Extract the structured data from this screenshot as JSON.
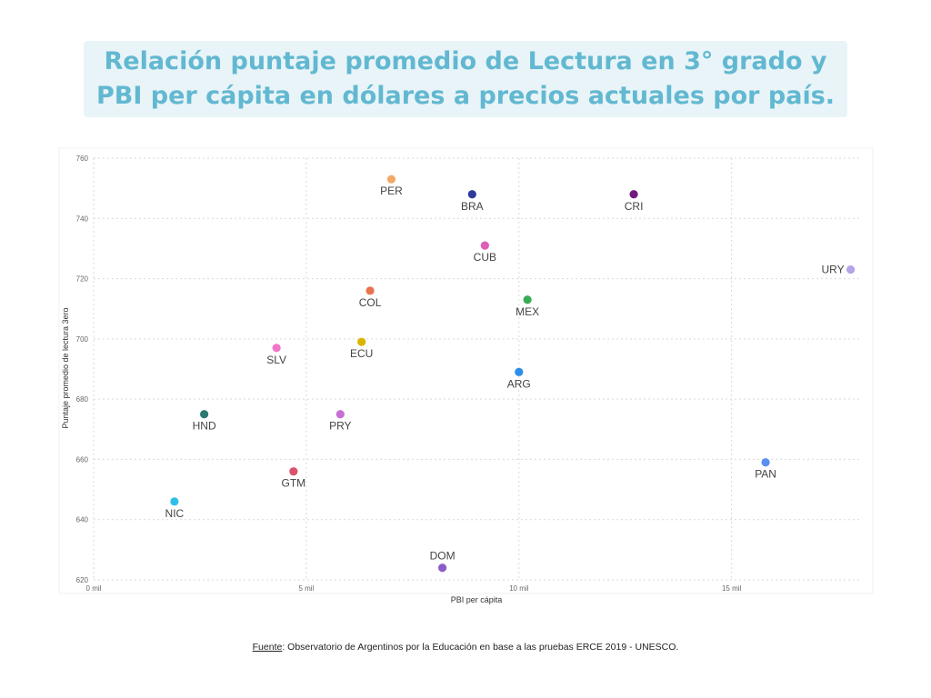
{
  "title": {
    "line1": "Relación puntaje promedio de Lectura en 3° grado y",
    "line2": "PBI per cápita en dólares a precios actuales por país."
  },
  "colors": {
    "title_text": "#62b8d1",
    "title_bg": "#e8f4f8",
    "grid": "#d9d9d9",
    "axis_text": "#666666",
    "point_label": "#444444"
  },
  "chart_data": {
    "type": "scatter",
    "xlabel": "PBI per cápita",
    "ylabel": "Puntaje promedio de lectura 3ero",
    "xlim": [
      0,
      18000
    ],
    "ylim": [
      620,
      760
    ],
    "x_ticks": [
      {
        "value": 0,
        "label": "0 mil"
      },
      {
        "value": 5000,
        "label": "5 mil"
      },
      {
        "value": 10000,
        "label": "10 mil"
      },
      {
        "value": 15000,
        "label": "15 mil"
      }
    ],
    "y_ticks": [
      {
        "value": 620,
        "label": "620"
      },
      {
        "value": 640,
        "label": "640"
      },
      {
        "value": 660,
        "label": "660"
      },
      {
        "value": 680,
        "label": "680"
      },
      {
        "value": 700,
        "label": "700"
      },
      {
        "value": 720,
        "label": "720"
      },
      {
        "value": 740,
        "label": "740"
      },
      {
        "value": 760,
        "label": "760"
      }
    ],
    "grid": true,
    "points": [
      {
        "label": "PER",
        "x": 7000,
        "y": 753,
        "color": "#f4a869",
        "label_pos": "below"
      },
      {
        "label": "BRA",
        "x": 8900,
        "y": 748,
        "color": "#2e3a9e",
        "label_pos": "below"
      },
      {
        "label": "CRI",
        "x": 12700,
        "y": 748,
        "color": "#6f1a7f",
        "label_pos": "below"
      },
      {
        "label": "CUB",
        "x": 9200,
        "y": 731,
        "color": "#e05fb8",
        "label_pos": "below"
      },
      {
        "label": "URY",
        "x": 17800,
        "y": 723,
        "color": "#b3a5e8",
        "label_pos": "left"
      },
      {
        "label": "COL",
        "x": 6500,
        "y": 716,
        "color": "#e8744e",
        "label_pos": "below"
      },
      {
        "label": "MEX",
        "x": 10200,
        "y": 713,
        "color": "#3aab56",
        "label_pos": "below"
      },
      {
        "label": "ECU",
        "x": 6300,
        "y": 699,
        "color": "#d9b400",
        "label_pos": "below"
      },
      {
        "label": "SLV",
        "x": 4300,
        "y": 697,
        "color": "#ef77c9",
        "label_pos": "below"
      },
      {
        "label": "ARG",
        "x": 10000,
        "y": 689,
        "color": "#2e8fe8",
        "label_pos": "below"
      },
      {
        "label": "HND",
        "x": 2600,
        "y": 675,
        "color": "#2a7a72",
        "label_pos": "below"
      },
      {
        "label": "PRY",
        "x": 5800,
        "y": 675,
        "color": "#c86fd6",
        "label_pos": "below"
      },
      {
        "label": "PAN",
        "x": 15800,
        "y": 659,
        "color": "#5a8ff0",
        "label_pos": "below"
      },
      {
        "label": "GTM",
        "x": 4700,
        "y": 656,
        "color": "#d9536b",
        "label_pos": "below"
      },
      {
        "label": "NIC",
        "x": 1900,
        "y": 646,
        "color": "#2ec0e8",
        "label_pos": "below"
      },
      {
        "label": "DOM",
        "x": 8200,
        "y": 624,
        "color": "#8a5cc8",
        "label_pos": "above"
      }
    ]
  },
  "source": {
    "label": "Fuente",
    "text": ": Observatorio de Argentinos por la Educación en base a las pruebas ERCE 2019 - UNESCO."
  }
}
